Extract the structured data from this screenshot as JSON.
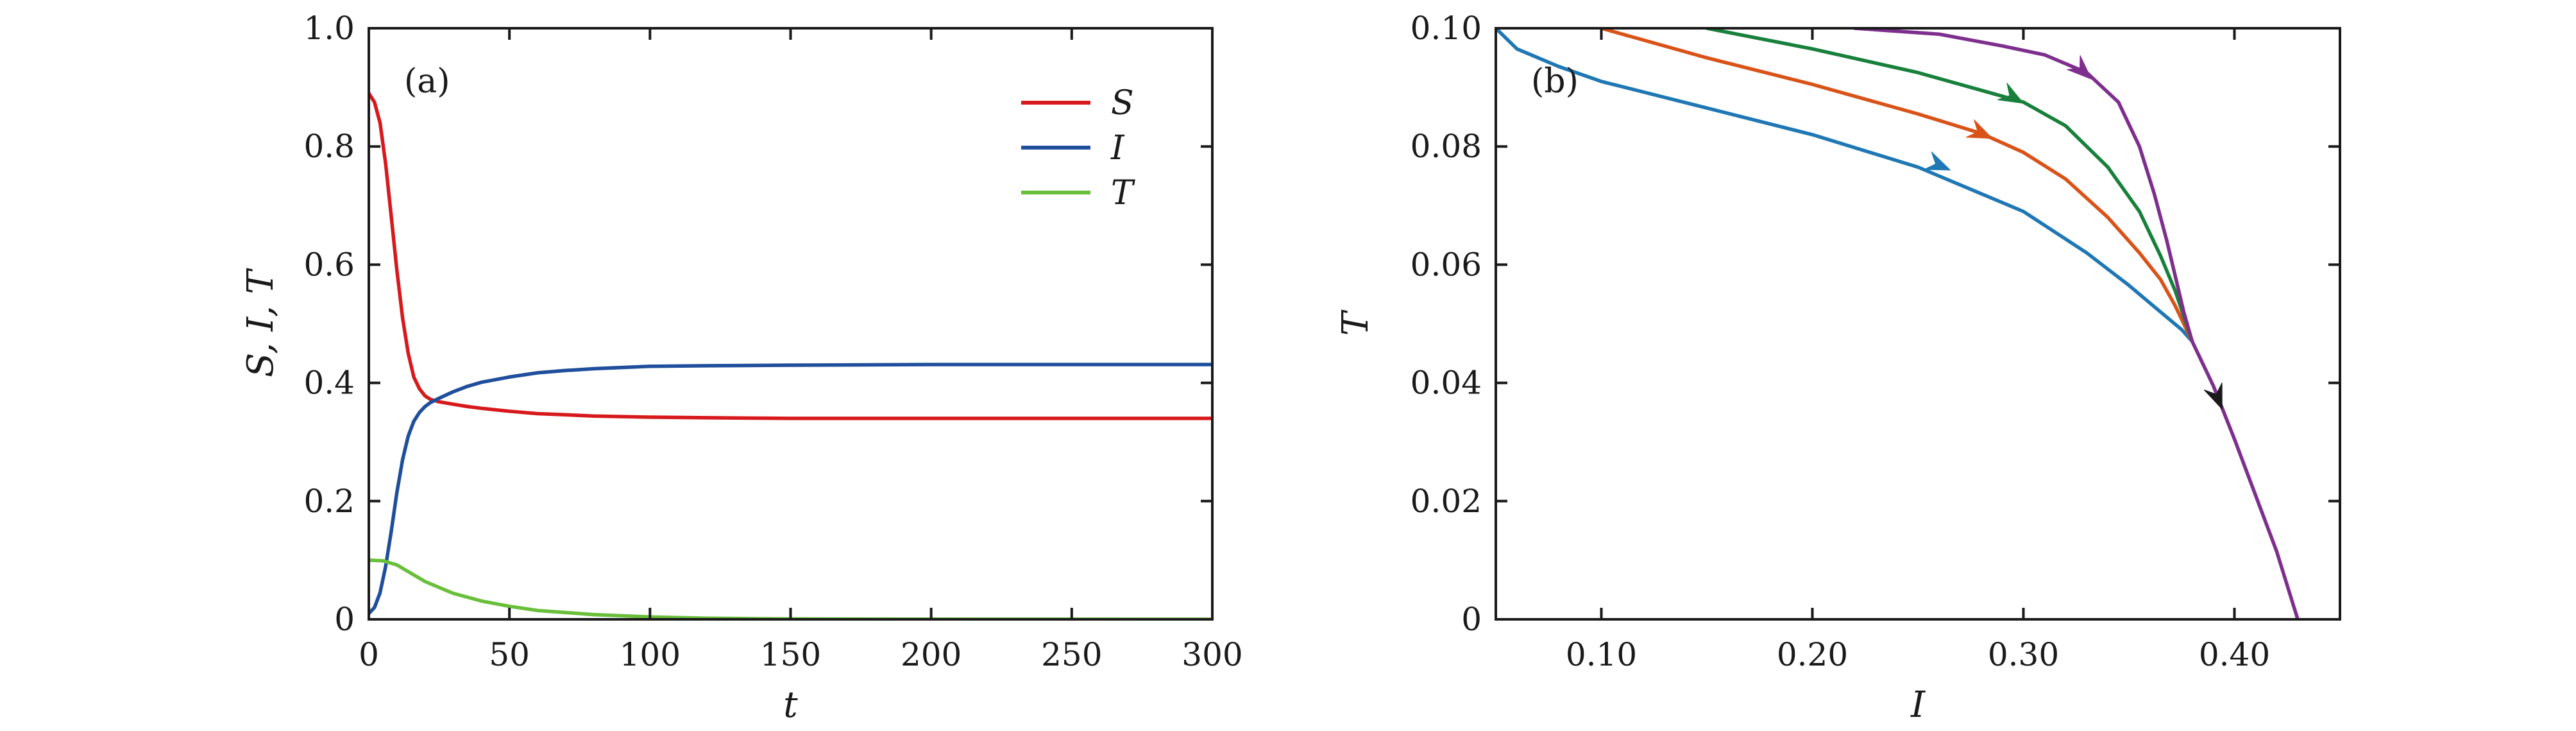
{
  "chart_data": [
    {
      "type": "line",
      "panel_label": "(a)",
      "xlabel": "t",
      "ylabel": "S, I, T",
      "xlim": [
        0,
        300
      ],
      "ylim": [
        0,
        1.0
      ],
      "xticks": [
        "0",
        "50",
        "100",
        "150",
        "200",
        "250",
        "300"
      ],
      "xtick_values": [
        0,
        50,
        100,
        150,
        200,
        250,
        300
      ],
      "yticks": [
        "0",
        "0.2",
        "0.4",
        "0.6",
        "0.8",
        "1.0"
      ],
      "ytick_values": [
        0,
        0.2,
        0.4,
        0.6,
        0.8,
        1.0
      ],
      "legend_position": "top-right",
      "series": [
        {
          "name": "S",
          "color": "#d7191c",
          "x": [
            0,
            2,
            4,
            6,
            8,
            10,
            12,
            14,
            16,
            18,
            20,
            22,
            25,
            30,
            35,
            40,
            50,
            60,
            70,
            80,
            100,
            120,
            150,
            200,
            250,
            300
          ],
          "y": [
            0.89,
            0.875,
            0.84,
            0.77,
            0.68,
            0.59,
            0.51,
            0.45,
            0.41,
            0.39,
            0.378,
            0.372,
            0.368,
            0.364,
            0.36,
            0.357,
            0.352,
            0.348,
            0.346,
            0.344,
            0.342,
            0.341,
            0.34,
            0.34,
            0.34,
            0.34
          ]
        },
        {
          "name": "I",
          "color": "#1f4e9c",
          "x": [
            0,
            2,
            4,
            6,
            8,
            10,
            12,
            14,
            16,
            18,
            20,
            22,
            25,
            30,
            35,
            40,
            50,
            60,
            70,
            80,
            100,
            120,
            150,
            200,
            250,
            300
          ],
          "y": [
            0.01,
            0.02,
            0.045,
            0.09,
            0.15,
            0.215,
            0.27,
            0.31,
            0.335,
            0.35,
            0.36,
            0.367,
            0.374,
            0.385,
            0.394,
            0.401,
            0.41,
            0.417,
            0.421,
            0.424,
            0.428,
            0.429,
            0.43,
            0.431,
            0.431,
            0.431
          ]
        },
        {
          "name": "T",
          "color": "#6abf3a",
          "x": [
            0,
            5,
            10,
            15,
            20,
            30,
            40,
            50,
            60,
            80,
            100,
            120,
            140,
            150,
            200,
            250,
            300
          ],
          "y": [
            0.1,
            0.099,
            0.092,
            0.078,
            0.064,
            0.044,
            0.031,
            0.022,
            0.015,
            0.008,
            0.004,
            0.002,
            0.001,
            0.0006,
            0.0002,
            0.0001,
            0.0
          ]
        }
      ]
    },
    {
      "type": "line",
      "panel_label": "(b)",
      "xlabel": "I",
      "ylabel": "T",
      "xlim": [
        0.05,
        0.45
      ],
      "ylim": [
        0,
        0.1
      ],
      "xticks": [
        "0.10",
        "0.20",
        "0.30",
        "0.40"
      ],
      "xtick_values": [
        0.1,
        0.2,
        0.3,
        0.4
      ],
      "yticks": [
        "0",
        "0.02",
        "0.04",
        "0.06",
        "0.08",
        "0.10"
      ],
      "ytick_values": [
        0,
        0.02,
        0.04,
        0.06,
        0.08,
        0.1
      ],
      "series": [
        {
          "color": "#1f77b4",
          "x": [
            0.05,
            0.06,
            0.08,
            0.1,
            0.15,
            0.2,
            0.25,
            0.3,
            0.33,
            0.35,
            0.36,
            0.37,
            0.375,
            0.38
          ],
          "y": [
            0.1,
            0.0965,
            0.0935,
            0.091,
            0.0865,
            0.082,
            0.0765,
            0.069,
            0.062,
            0.0565,
            0.0535,
            0.0505,
            0.049,
            0.047
          ],
          "arrow_at": [
            0.26,
            0.0768
          ]
        },
        {
          "color": "#d95319",
          "x": [
            0.1,
            0.15,
            0.2,
            0.25,
            0.28,
            0.3,
            0.32,
            0.34,
            0.355,
            0.365,
            0.372,
            0.38
          ],
          "y": [
            0.1,
            0.095,
            0.0905,
            0.0855,
            0.0822,
            0.079,
            0.0745,
            0.068,
            0.062,
            0.0575,
            0.053,
            0.047
          ],
          "arrow_at": [
            0.28,
            0.0822
          ]
        },
        {
          "color": "#18803b",
          "x": [
            0.15,
            0.2,
            0.25,
            0.28,
            0.3,
            0.32,
            0.34,
            0.355,
            0.365,
            0.372,
            0.38
          ],
          "y": [
            0.1,
            0.0965,
            0.0925,
            0.0895,
            0.0875,
            0.0835,
            0.0765,
            0.069,
            0.0615,
            0.0555,
            0.047
          ],
          "arrow_at": [
            0.295,
            0.0883
          ]
        },
        {
          "color": "#7e2f8e",
          "x": [
            0.22,
            0.26,
            0.29,
            0.31,
            0.33,
            0.345,
            0.355,
            0.362,
            0.368,
            0.372,
            0.376,
            0.38,
            0.39,
            0.4,
            0.41,
            0.42,
            0.43
          ],
          "y": [
            0.1,
            0.099,
            0.097,
            0.0955,
            0.0925,
            0.0875,
            0.08,
            0.072,
            0.064,
            0.058,
            0.052,
            0.047,
            0.0395,
            0.0305,
            0.021,
            0.0115,
            0.0
          ],
          "arrow_at": [
            0.328,
            0.0928
          ]
        }
      ],
      "shared_arrow": {
        "color": "#1a1a1a",
        "at": [
          0.392,
          0.0375
        ]
      }
    }
  ]
}
